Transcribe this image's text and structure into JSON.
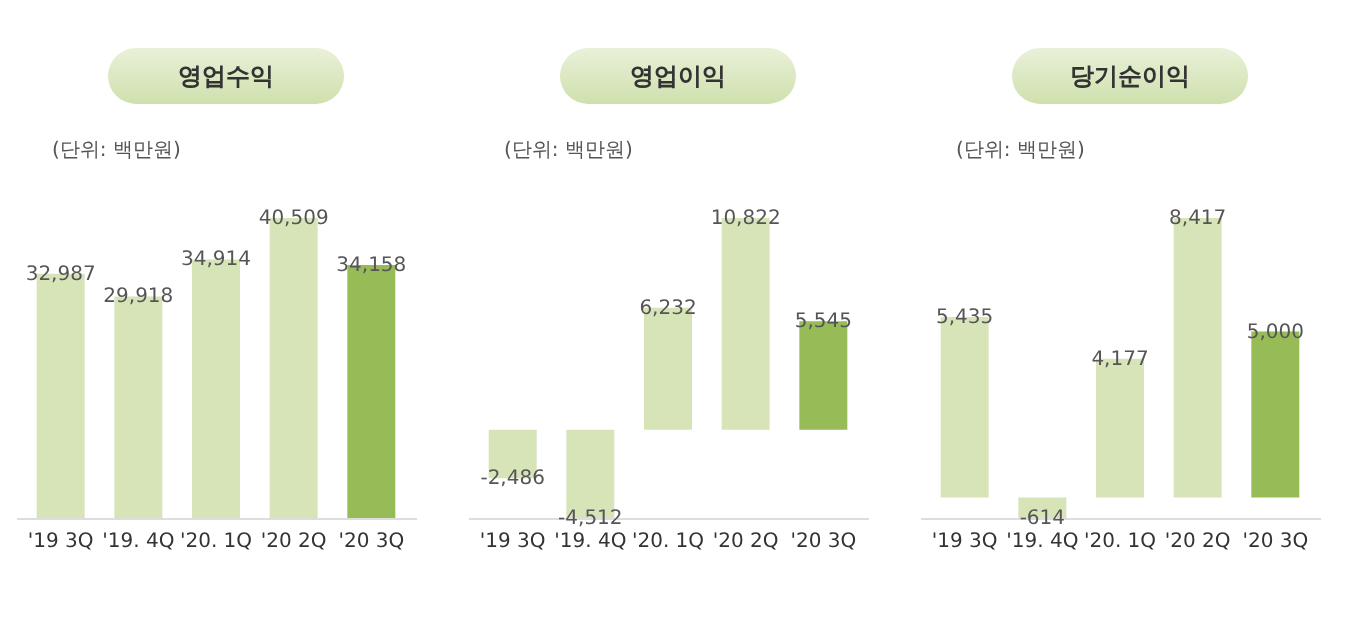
{
  "chart_data": [
    {
      "type": "bar",
      "title": "영업수익",
      "annotations": [
        "(단위: 백만원)"
      ],
      "categories": [
        "'19 3Q",
        "'19. 4Q",
        "'20. 1Q",
        "'20 2Q",
        "'20 3Q"
      ],
      "values": [
        32987,
        29918,
        34914,
        40509,
        34158
      ],
      "colors": [
        "#d6e4b8",
        "#d6e4b8",
        "#d6e4b8",
        "#d6e4b8",
        "#97bb56"
      ],
      "value_labels": [
        "32,987",
        "29,918",
        "34,914",
        "40,509",
        "34,158"
      ]
    },
    {
      "type": "bar",
      "title": "영업이익",
      "annotations": [
        "(단위: 백만원)"
      ],
      "categories": [
        "'19 3Q",
        "'19. 4Q",
        "'20. 1Q",
        "'20 2Q",
        "'20 3Q"
      ],
      "values": [
        -2486,
        -4512,
        6232,
        10822,
        5545
      ],
      "colors": [
        "#d6e4b8",
        "#d6e4b8",
        "#d6e4b8",
        "#d6e4b8",
        "#97bb56"
      ],
      "value_labels": [
        "-2,486",
        "-4,512",
        "6,232",
        "10,822",
        "5,545"
      ]
    },
    {
      "type": "bar",
      "title": "당기순이익",
      "annotations": [
        "(단위: 백만원)"
      ],
      "categories": [
        "'19 3Q",
        "'19. 4Q",
        "'20. 1Q",
        "'20 2Q",
        "'20 3Q"
      ],
      "values": [
        5435,
        -614,
        4177,
        8417,
        5000
      ],
      "colors": [
        "#d6e4b8",
        "#d6e4b8",
        "#d6e4b8",
        "#d6e4b8",
        "#97bb56"
      ],
      "value_labels": [
        "5,435",
        "-614",
        "4,177",
        "8,417",
        "5,000"
      ]
    }
  ]
}
